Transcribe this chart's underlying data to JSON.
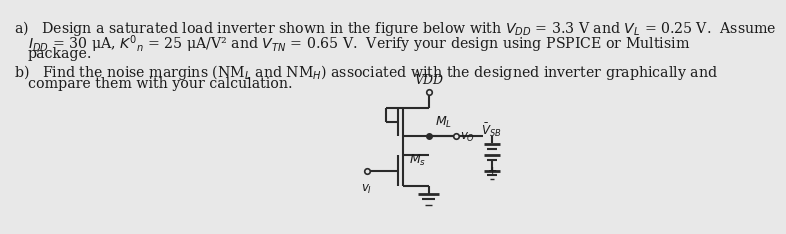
{
  "bg_color": "#e8e8e8",
  "text_color": "#1a1a1a",
  "circuit_color": "#2a2a2a",
  "text_a_line1": "a)   Design a saturated load inverter shown in the figure below with $V_{DD}$ = 3.3 V and $V_L$ = 0.25 V.  Assume",
  "text_a_line2": "$I_{DD}$ = 30 μA, $K'_n$ = 25 μA/V² and $V_{TN}$ = 0.65 V.  Verify your design using PSPICE or Multisim",
  "text_a_line3": "package.",
  "text_b_line1": "b)   Find the noise margins (NM$_L$ and NM$_H$) associated with the designed inverter graphically and",
  "text_b_line2": "compare them with your calculation.",
  "fontsize": 10.2,
  "circuit_lw": 1.5,
  "vdd_label": "VDD",
  "ml_label": "$M_L$",
  "ms_label": "$M_s$",
  "vsb_label": "$\\bar{V}_{SB}$",
  "vo_label": "$v_O$",
  "vi_label": "$v_I$"
}
